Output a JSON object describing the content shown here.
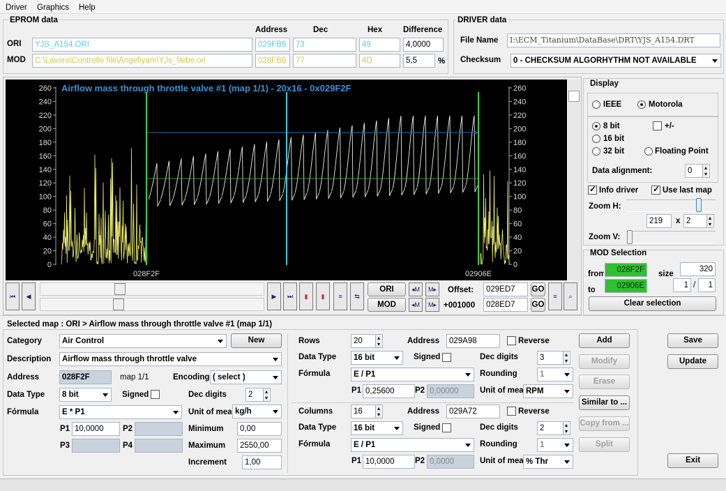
{
  "menu": [
    "Driver",
    "Graphics",
    "Help"
  ],
  "eprom": {
    "title": "EPROM data",
    "headers": [
      "Address",
      "Dec",
      "Hex",
      "Difference"
    ],
    "rows": [
      {
        "label": "ORI",
        "file": "YJS_A154.ORI",
        "address": "029FB6",
        "dec": "73",
        "hex": "49",
        "difference": "4,0000"
      },
      {
        "label": "MOD",
        "file": "C:\\Lavoro\\Controllo file\\Angel\\yam\\YJs_9ebe.ori",
        "address": "028FB6",
        "dec": "77",
        "hex": "4D",
        "difference": "5,5",
        "unit": "%"
      }
    ]
  },
  "driver": {
    "title": "DRIVER data",
    "file_name_label": "File Name",
    "file_name": "I:\\ECM_Titanium\\DataBase\\DRT\\YJS_A154.DRT",
    "checksum_label": "Checksum",
    "checksum": "0 - CHECKSUM ALGORHYTHM NOT AVAILABLE"
  },
  "graph": {
    "title": "Airflow mass through throttle valve #1 (map 1/1) - 20x16 - 0x029F2F",
    "ylim": [
      0,
      260
    ],
    "yticks": [
      0,
      20,
      40,
      60,
      80,
      100,
      120,
      140,
      160,
      180,
      200,
      220,
      240,
      260
    ],
    "start_label": "028F2F",
    "end_label": "02906E"
  },
  "toolbar": {
    "ori": "ORI",
    "mod": "MOD",
    "offset_label": "Offset:",
    "offset": "029ED7",
    "go": "GO",
    "step": "+001000",
    "offset2": "028ED7"
  },
  "display": {
    "title": "Display",
    "ieee": "IEEE",
    "motorola": "Motorola",
    "bit8": "8 bit",
    "sign": "+/-",
    "bit16": "16 bit",
    "bit32": "32 bit",
    "floating": "Floating Point",
    "alignment_label": "Data alignment:",
    "alignment": "0",
    "info_driver": "Info driver",
    "use_last_map": "Use last map",
    "zoom_h_label": "Zoom H:",
    "zoom_h": "219",
    "times": "x",
    "zoom_h2": "2",
    "zoom_v_label": "Zoom V:"
  },
  "mod_selection": {
    "title": "MOD Selection",
    "from_label": "from",
    "from": "028F2F",
    "size_label": "size",
    "size": "320",
    "to_label": "to",
    "to": "02906E",
    "page": "1",
    "slash": "/",
    "pages": "1",
    "clear": "Clear selection"
  },
  "selected_map": "Selected map : ORI > Airflow mass through throttle valve #1 (map 1/1)",
  "map": {
    "category_label": "Category",
    "category": "Air Control",
    "new": "New",
    "description_label": "Description",
    "description": "Airflow mass through throttle valve",
    "address_label": "Address",
    "address": "028F2F",
    "map_index": "map 1/1",
    "encoding_label": "Encoding",
    "encoding": "( select )",
    "data_type_label": "Data Type",
    "data_type": "8 bit",
    "signed_label": "Signed",
    "dec_digits_label": "Dec digits",
    "dec_digits": "2",
    "formula_label": "Fórmula",
    "formula": "E * P1",
    "unit_label": "Unit of mea",
    "unit": "kg/h",
    "p1_label": "P1",
    "p1": "10,0000",
    "p2_label": "P2",
    "p3_label": "P3",
    "p4_label": "P4",
    "minimum_label": "Minimum",
    "minimum": "0,00",
    "maximum_label": "Maximum",
    "maximum": "2550,00",
    "increment_label": "Increment",
    "increment": "1,00"
  },
  "rows_axis": {
    "label": "Rows",
    "count": "20",
    "address_label": "Address",
    "address": "029A98",
    "reverse": "Reverse",
    "data_type_label": "Data Type",
    "data_type": "16 bit",
    "signed_label": "Signed",
    "dec_digits_label": "Dec digits",
    "dec_digits": "3",
    "formula_label": "Fórmula",
    "formula": "E / P1",
    "rounding_label": "Rounding",
    "rounding": "1",
    "p1_label": "P1",
    "p1": "0,25600",
    "p2_label": "P2",
    "p2": "0,00000",
    "unit_label": "Unit of mea",
    "unit": "RPM"
  },
  "cols_axis": {
    "label": "Columns",
    "count": "16",
    "address_label": "Address",
    "address": "029A72",
    "reverse": "Reverse",
    "data_type_label": "Data Type",
    "data_type": "16 bit",
    "signed_label": "Signed",
    "dec_digits_label": "Dec digits",
    "dec_digits": "2",
    "formula_label": "Fórmula",
    "formula": "E / P1",
    "rounding_label": "Rounding",
    "rounding": "1",
    "p1_label": "P1",
    "p1": "10,0000",
    "p2_label": "P2",
    "p2": "0,0000",
    "unit_label": "Unit of mea",
    "unit": "% Thr"
  },
  "buttons": {
    "add": "Add",
    "modify": "Modify",
    "erase": "Erase",
    "similar": "Similar to ...",
    "copy": "Copy from ...",
    "split": "Split",
    "save": "Save",
    "update": "Update",
    "exit": "Exit"
  }
}
